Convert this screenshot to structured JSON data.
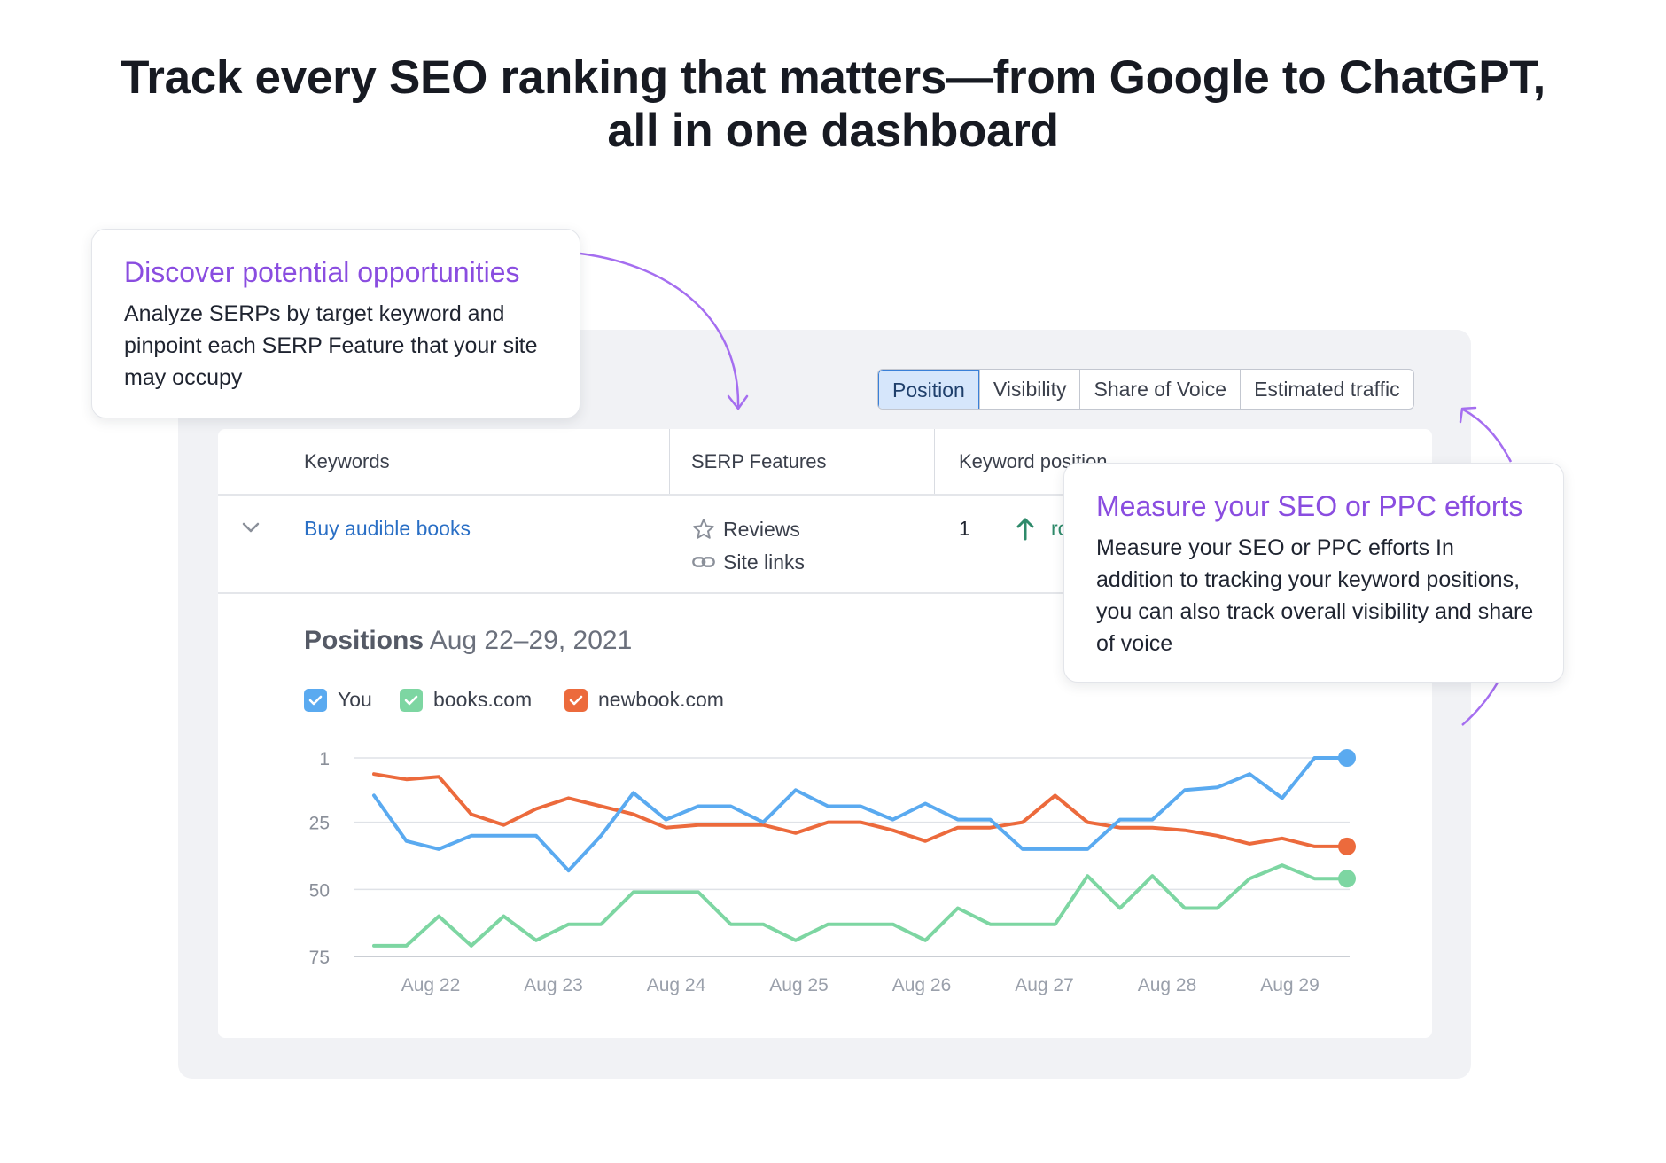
{
  "headline": {
    "line1": "Track every SEO ranking that matters—from Google to ChatGPT,",
    "line2": "all in one dashboard"
  },
  "tabs": [
    {
      "label": "Position",
      "active": true
    },
    {
      "label": "Visibility",
      "active": false
    },
    {
      "label": "Share of Voice",
      "active": false
    },
    {
      "label": "Estimated traffic",
      "active": false
    }
  ],
  "table": {
    "headers": [
      "Keywords",
      "SERP Features",
      "Keyword position"
    ],
    "row": {
      "keyword": "Buy audible books",
      "features": [
        {
          "icon": "star-icon",
          "label": "Reviews"
        },
        {
          "icon": "link-icon",
          "label": "Site links"
        }
      ],
      "position": "1",
      "position_fragment": "ro"
    }
  },
  "positions": {
    "title": "Positions",
    "range": "Aug 22–29, 2021"
  },
  "callouts": {
    "left": {
      "title": "Discover potential opportunities",
      "body": "Analyze SERPs by target keyword and pinpoint each SERP Feature that your site may occupy"
    },
    "right": {
      "title": "Measure your SEO or PPC efforts",
      "body": "Measure your SEO or PPC efforts In addition to tracking your keyword positions, you can also track overall visibility and share of voice"
    }
  },
  "colors": {
    "accent": "#8a4de0",
    "you": "#5aaaf0",
    "books": "#7dd6a2",
    "newbook": "#ec6a3c",
    "link": "#2a6fc5",
    "arrow_up": "#2e8a6a"
  },
  "chart_data": {
    "type": "line",
    "title": "",
    "xlabel": "",
    "ylabel": "",
    "y_ticks": [
      "1",
      "25",
      "50",
      "75"
    ],
    "ylim": [
      1,
      75
    ],
    "y_inverted": true,
    "x_ticks": [
      "Aug 22",
      "Aug 23",
      "Aug 24",
      "Aug 25",
      "Aug 26",
      "Aug 27",
      "Aug 28",
      "Aug 29"
    ],
    "grid": true,
    "legend": "top-left",
    "series": [
      {
        "name": "You",
        "values": [
          15,
          32,
          35,
          30,
          30,
          30,
          43,
          30,
          14,
          24,
          19,
          19,
          25,
          13,
          19,
          19,
          24,
          18,
          24,
          24,
          35,
          35,
          35,
          24,
          24,
          13,
          12,
          7,
          16,
          1,
          1
        ]
      },
      {
        "name": "books.com",
        "values": [
          71,
          71,
          60,
          71,
          60,
          69,
          63,
          63,
          51,
          51,
          51,
          63,
          63,
          69,
          63,
          63,
          63,
          69,
          57,
          63,
          63,
          63,
          45,
          57,
          45,
          57,
          57,
          46,
          41,
          46,
          46
        ]
      },
      {
        "name": "newbook.com",
        "values": [
          7,
          9,
          8,
          22,
          26,
          20,
          16,
          19,
          22,
          27,
          26,
          26,
          26,
          29,
          25,
          25,
          28,
          32,
          27,
          27,
          25,
          15,
          25,
          27,
          27,
          28,
          30,
          33,
          31,
          34,
          34
        ]
      }
    ]
  }
}
